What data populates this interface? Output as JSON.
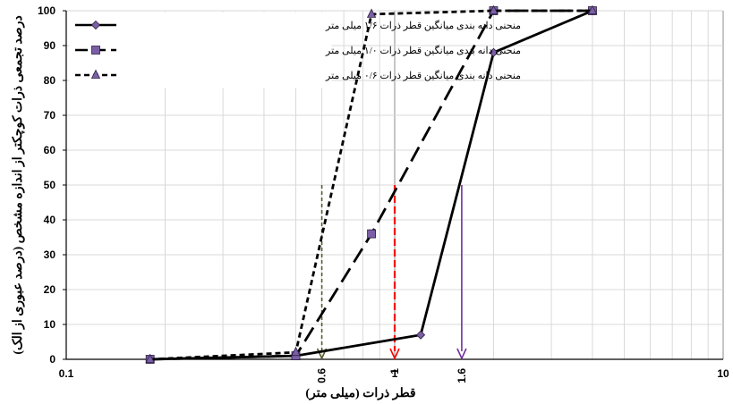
{
  "chart_data": {
    "type": "line",
    "x_scale": "log",
    "xlim": [
      0.1,
      10
    ],
    "ylim": [
      0,
      100
    ],
    "x_ticks": [
      "0.1",
      "1",
      "10"
    ],
    "y_ticks": [
      "0",
      "10",
      "20",
      "30",
      "40",
      "50",
      "60",
      "70",
      "80",
      "90",
      "100"
    ],
    "xlabel": "قطر ذرات (میلی متر)",
    "ylabel": "درصد تجمعی ذرات کوچکتر از اندازه مشخص (درصد عبوری از الک)",
    "grid": true,
    "legend_position": "top-left",
    "series": [
      {
        "name": "منحنی دانه بندی میانگین قطر ذرات ۱/۶ میلی متر",
        "style": "solid",
        "marker": "diamond",
        "color": "#000000",
        "marker_color": "#7b5fa6",
        "x": [
          0.18,
          0.5,
          1.2,
          2.0,
          4.0
        ],
        "y": [
          0,
          1,
          7,
          88,
          100
        ]
      },
      {
        "name": "منحنی دانه بندی میانگین قطر ذرات ۱/۰ میلی متر",
        "style": "long-dash",
        "marker": "square",
        "color": "#000000",
        "marker_color": "#7b5fa6",
        "x": [
          0.18,
          0.5,
          0.85,
          2.0,
          4.0
        ],
        "y": [
          0,
          1,
          36,
          100,
          100
        ]
      },
      {
        "name": "منحنی دانه بندی میانگین قطر ذرات ۰/۶ میلی متر",
        "style": "dash",
        "marker": "triangle",
        "color": "#000000",
        "marker_color": "#7b5fa6",
        "x": [
          0.18,
          0.5,
          0.85,
          2.0,
          4.0
        ],
        "y": [
          0,
          2,
          99,
          100,
          100
        ]
      }
    ],
    "annotations": [
      {
        "label": "0.6",
        "x": 0.6,
        "y_from": 50,
        "y_to": 0,
        "color": "#5a5a2e",
        "style": "dashed"
      },
      {
        "label": "1",
        "x": 1.0,
        "y_from": 50,
        "y_to": 0,
        "color": "#ff0000",
        "style": "dashed"
      },
      {
        "label": "1.6",
        "x": 1.6,
        "y_from": 50,
        "y_to": 0,
        "color": "#7030a0",
        "style": "solid"
      }
    ]
  }
}
